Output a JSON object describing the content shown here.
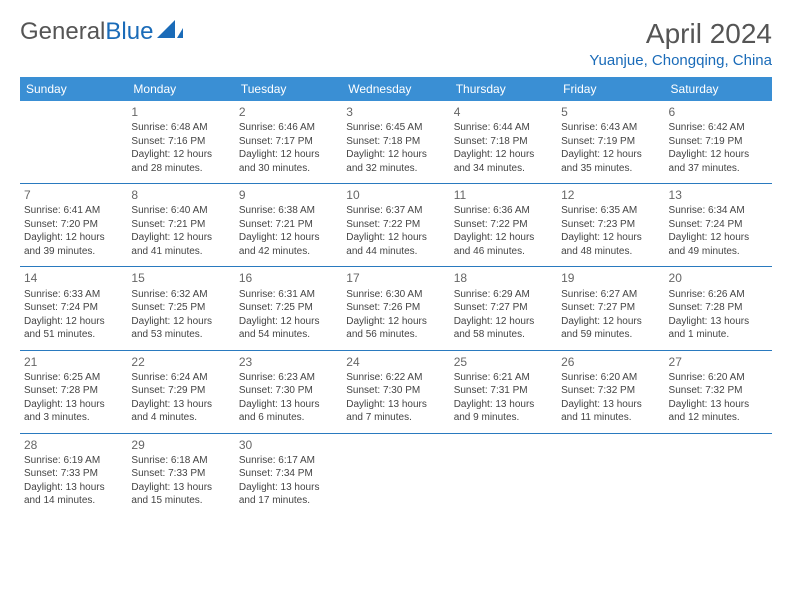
{
  "brand": {
    "name_part1": "General",
    "name_part2": "Blue"
  },
  "title": "April 2024",
  "location": "Yuanjue, Chongqing, China",
  "colors": {
    "header_bg": "#3a8fd4",
    "border": "#2a7abf",
    "brand_blue": "#1a6bb8",
    "text": "#444444",
    "title_text": "#555555"
  },
  "weekdays": [
    "Sunday",
    "Monday",
    "Tuesday",
    "Wednesday",
    "Thursday",
    "Friday",
    "Saturday"
  ],
  "weeks": [
    [
      null,
      {
        "n": "1",
        "sr": "6:48 AM",
        "ss": "7:16 PM",
        "dl": "12 hours and 28 minutes."
      },
      {
        "n": "2",
        "sr": "6:46 AM",
        "ss": "7:17 PM",
        "dl": "12 hours and 30 minutes."
      },
      {
        "n": "3",
        "sr": "6:45 AM",
        "ss": "7:18 PM",
        "dl": "12 hours and 32 minutes."
      },
      {
        "n": "4",
        "sr": "6:44 AM",
        "ss": "7:18 PM",
        "dl": "12 hours and 34 minutes."
      },
      {
        "n": "5",
        "sr": "6:43 AM",
        "ss": "7:19 PM",
        "dl": "12 hours and 35 minutes."
      },
      {
        "n": "6",
        "sr": "6:42 AM",
        "ss": "7:19 PM",
        "dl": "12 hours and 37 minutes."
      }
    ],
    [
      {
        "n": "7",
        "sr": "6:41 AM",
        "ss": "7:20 PM",
        "dl": "12 hours and 39 minutes."
      },
      {
        "n": "8",
        "sr": "6:40 AM",
        "ss": "7:21 PM",
        "dl": "12 hours and 41 minutes."
      },
      {
        "n": "9",
        "sr": "6:38 AM",
        "ss": "7:21 PM",
        "dl": "12 hours and 42 minutes."
      },
      {
        "n": "10",
        "sr": "6:37 AM",
        "ss": "7:22 PM",
        "dl": "12 hours and 44 minutes."
      },
      {
        "n": "11",
        "sr": "6:36 AM",
        "ss": "7:22 PM",
        "dl": "12 hours and 46 minutes."
      },
      {
        "n": "12",
        "sr": "6:35 AM",
        "ss": "7:23 PM",
        "dl": "12 hours and 48 minutes."
      },
      {
        "n": "13",
        "sr": "6:34 AM",
        "ss": "7:24 PM",
        "dl": "12 hours and 49 minutes."
      }
    ],
    [
      {
        "n": "14",
        "sr": "6:33 AM",
        "ss": "7:24 PM",
        "dl": "12 hours and 51 minutes."
      },
      {
        "n": "15",
        "sr": "6:32 AM",
        "ss": "7:25 PM",
        "dl": "12 hours and 53 minutes."
      },
      {
        "n": "16",
        "sr": "6:31 AM",
        "ss": "7:25 PM",
        "dl": "12 hours and 54 minutes."
      },
      {
        "n": "17",
        "sr": "6:30 AM",
        "ss": "7:26 PM",
        "dl": "12 hours and 56 minutes."
      },
      {
        "n": "18",
        "sr": "6:29 AM",
        "ss": "7:27 PM",
        "dl": "12 hours and 58 minutes."
      },
      {
        "n": "19",
        "sr": "6:27 AM",
        "ss": "7:27 PM",
        "dl": "12 hours and 59 minutes."
      },
      {
        "n": "20",
        "sr": "6:26 AM",
        "ss": "7:28 PM",
        "dl": "13 hours and 1 minute."
      }
    ],
    [
      {
        "n": "21",
        "sr": "6:25 AM",
        "ss": "7:28 PM",
        "dl": "13 hours and 3 minutes."
      },
      {
        "n": "22",
        "sr": "6:24 AM",
        "ss": "7:29 PM",
        "dl": "13 hours and 4 minutes."
      },
      {
        "n": "23",
        "sr": "6:23 AM",
        "ss": "7:30 PM",
        "dl": "13 hours and 6 minutes."
      },
      {
        "n": "24",
        "sr": "6:22 AM",
        "ss": "7:30 PM",
        "dl": "13 hours and 7 minutes."
      },
      {
        "n": "25",
        "sr": "6:21 AM",
        "ss": "7:31 PM",
        "dl": "13 hours and 9 minutes."
      },
      {
        "n": "26",
        "sr": "6:20 AM",
        "ss": "7:32 PM",
        "dl": "13 hours and 11 minutes."
      },
      {
        "n": "27",
        "sr": "6:20 AM",
        "ss": "7:32 PM",
        "dl": "13 hours and 12 minutes."
      }
    ],
    [
      {
        "n": "28",
        "sr": "6:19 AM",
        "ss": "7:33 PM",
        "dl": "13 hours and 14 minutes."
      },
      {
        "n": "29",
        "sr": "6:18 AM",
        "ss": "7:33 PM",
        "dl": "13 hours and 15 minutes."
      },
      {
        "n": "30",
        "sr": "6:17 AM",
        "ss": "7:34 PM",
        "dl": "13 hours and 17 minutes."
      },
      null,
      null,
      null,
      null
    ]
  ],
  "labels": {
    "sunrise": "Sunrise:",
    "sunset": "Sunset:",
    "daylight": "Daylight:"
  }
}
